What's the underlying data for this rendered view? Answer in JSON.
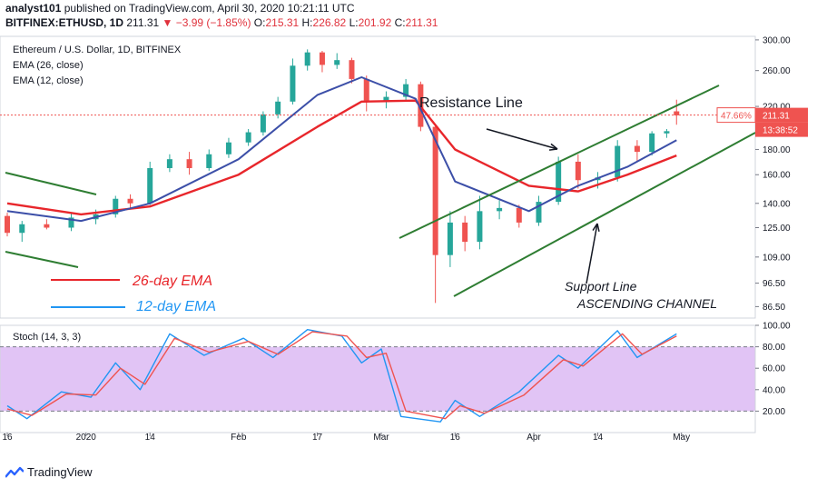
{
  "header": {
    "publisher": "analyst101",
    "published_text": "published on TradingView.com, April 30, 2020 10:21:11 UTC",
    "symbol": "BITFINEX:ETHUSD, 1D",
    "last": "211.31",
    "change": "▼ −3.99 (−1.85%)",
    "o_label": "O:",
    "o": "215.31",
    "h_label": "H:",
    "h": "226.82",
    "l_label": "L:",
    "l": "201.92",
    "c_label": "C:",
    "c": "211.31"
  },
  "footer": {
    "brand": "TradingView"
  },
  "colors": {
    "up": "#26a69a",
    "down": "#ef5350",
    "ema26": "#e8262b",
    "ema12": "#3c4fa8",
    "channel": "#2e7d32",
    "stoch_k": "#2196f3",
    "stoch_d": "#ef5350",
    "stoch_bg": "#e1c4f5",
    "price_tag": "#ef5350"
  },
  "chart_data": [
    {
      "type": "candlestick",
      "title": "Ethereum / U.S. Dollar, 1D, BITFINEX",
      "legend": [
        "EMA (26, close)",
        "EMA (12, close)"
      ],
      "y_scale": "log",
      "ylim": [
        82,
        305
      ],
      "y_ticks": [
        "300.00",
        "260.00",
        "220.00",
        "180.00",
        "160.00",
        "140.00",
        "125.00",
        "109.00",
        "96.50",
        "86.50"
      ],
      "x_ticks": [
        "16",
        "2020",
        "14",
        "Feb",
        "17",
        "Mar",
        "16",
        "Apr",
        "14",
        "May"
      ],
      "x_tick_dates": [
        "2019-12-16",
        "2020-01-01",
        "2020-01-14",
        "2020-02-01",
        "2020-02-17",
        "2020-03-01",
        "2020-03-16",
        "2020-04-01",
        "2020-04-14",
        "2020-05-01"
      ],
      "x_range": [
        "2019-12-16",
        "2020-05-16"
      ],
      "last_price_label": "211.31",
      "last_change_label": "47.66%",
      "countdown_label": "13:38:52",
      "annotations": {
        "resistance": "Resistance Line",
        "support": "Support Line",
        "channel": "ASCENDING CHANNEL",
        "ema26": "26-day EMA",
        "ema12": "12-day EMA"
      },
      "ohlc_daily_close_approx": [
        {
          "date": "2019-12-16",
          "o": 132,
          "h": 134,
          "l": 120,
          "c": 122
        },
        {
          "date": "2019-12-19",
          "o": 122,
          "h": 129,
          "l": 117,
          "c": 127
        },
        {
          "date": "2019-12-24",
          "o": 127,
          "h": 130,
          "l": 124,
          "c": 125
        },
        {
          "date": "2019-12-29",
          "o": 125,
          "h": 134,
          "l": 123,
          "c": 131
        },
        {
          "date": "2020-01-03",
          "o": 130,
          "h": 136,
          "l": 127,
          "c": 133
        },
        {
          "date": "2020-01-07",
          "o": 133,
          "h": 145,
          "l": 131,
          "c": 143
        },
        {
          "date": "2020-01-10",
          "o": 143,
          "h": 146,
          "l": 137,
          "c": 140
        },
        {
          "date": "2020-01-14",
          "o": 140,
          "h": 170,
          "l": 139,
          "c": 165
        },
        {
          "date": "2020-01-18",
          "o": 165,
          "h": 176,
          "l": 162,
          "c": 172
        },
        {
          "date": "2020-01-22",
          "o": 172,
          "h": 178,
          "l": 160,
          "c": 165
        },
        {
          "date": "2020-01-26",
          "o": 165,
          "h": 180,
          "l": 163,
          "c": 176
        },
        {
          "date": "2020-01-30",
          "o": 176,
          "h": 190,
          "l": 173,
          "c": 186
        },
        {
          "date": "2020-02-03",
          "o": 186,
          "h": 198,
          "l": 183,
          "c": 195
        },
        {
          "date": "2020-02-06",
          "o": 195,
          "h": 215,
          "l": 192,
          "c": 212
        },
        {
          "date": "2020-02-09",
          "o": 212,
          "h": 230,
          "l": 208,
          "c": 225
        },
        {
          "date": "2020-02-12",
          "o": 225,
          "h": 275,
          "l": 222,
          "c": 266
        },
        {
          "date": "2020-02-15",
          "o": 266,
          "h": 287,
          "l": 260,
          "c": 283
        },
        {
          "date": "2020-02-18",
          "o": 283,
          "h": 285,
          "l": 258,
          "c": 267
        },
        {
          "date": "2020-02-21",
          "o": 267,
          "h": 282,
          "l": 262,
          "c": 273
        },
        {
          "date": "2020-02-24",
          "o": 273,
          "h": 276,
          "l": 245,
          "c": 250
        },
        {
          "date": "2020-02-27",
          "o": 250,
          "h": 254,
          "l": 215,
          "c": 226
        },
        {
          "date": "2020-03-02",
          "o": 226,
          "h": 236,
          "l": 218,
          "c": 230
        },
        {
          "date": "2020-03-06",
          "o": 230,
          "h": 250,
          "l": 226,
          "c": 244
        },
        {
          "date": "2020-03-09",
          "o": 244,
          "h": 247,
          "l": 196,
          "c": 200
        },
        {
          "date": "2020-03-12",
          "o": 200,
          "h": 202,
          "l": 88,
          "c": 110
        },
        {
          "date": "2020-03-15",
          "o": 110,
          "h": 135,
          "l": 104,
          "c": 128
        },
        {
          "date": "2020-03-18",
          "o": 128,
          "h": 132,
          "l": 112,
          "c": 117
        },
        {
          "date": "2020-03-21",
          "o": 117,
          "h": 145,
          "l": 113,
          "c": 135
        },
        {
          "date": "2020-03-25",
          "o": 135,
          "h": 142,
          "l": 130,
          "c": 137
        },
        {
          "date": "2020-03-29",
          "o": 137,
          "h": 139,
          "l": 125,
          "c": 128
        },
        {
          "date": "2020-04-02",
          "o": 128,
          "h": 145,
          "l": 126,
          "c": 141
        },
        {
          "date": "2020-04-06",
          "o": 141,
          "h": 174,
          "l": 139,
          "c": 170
        },
        {
          "date": "2020-04-10",
          "o": 170,
          "h": 176,
          "l": 150,
          "c": 156
        },
        {
          "date": "2020-04-14",
          "o": 156,
          "h": 162,
          "l": 150,
          "c": 158
        },
        {
          "date": "2020-04-18",
          "o": 158,
          "h": 188,
          "l": 155,
          "c": 183
        },
        {
          "date": "2020-04-22",
          "o": 183,
          "h": 188,
          "l": 170,
          "c": 178
        },
        {
          "date": "2020-04-25",
          "o": 178,
          "h": 196,
          "l": 175,
          "c": 194
        },
        {
          "date": "2020-04-28",
          "o": 194,
          "h": 198,
          "l": 190,
          "c": 196
        },
        {
          "date": "2020-04-30",
          "o": 215,
          "h": 227,
          "l": 202,
          "c": 211
        }
      ],
      "ema26_approx": [
        {
          "date": "2019-12-16",
          "v": 140
        },
        {
          "date": "2019-12-31",
          "v": 133
        },
        {
          "date": "2020-01-14",
          "v": 138
        },
        {
          "date": "2020-02-01",
          "v": 160
        },
        {
          "date": "2020-02-17",
          "v": 200
        },
        {
          "date": "2020-02-26",
          "v": 225
        },
        {
          "date": "2020-03-08",
          "v": 226
        },
        {
          "date": "2020-03-16",
          "v": 180
        },
        {
          "date": "2020-03-31",
          "v": 152
        },
        {
          "date": "2020-04-10",
          "v": 148
        },
        {
          "date": "2020-04-20",
          "v": 160
        },
        {
          "date": "2020-04-30",
          "v": 175
        }
      ],
      "ema12_approx": [
        {
          "date": "2019-12-16",
          "v": 135
        },
        {
          "date": "2019-12-31",
          "v": 129
        },
        {
          "date": "2020-01-14",
          "v": 140
        },
        {
          "date": "2020-02-01",
          "v": 172
        },
        {
          "date": "2020-02-17",
          "v": 232
        },
        {
          "date": "2020-02-26",
          "v": 252
        },
        {
          "date": "2020-03-08",
          "v": 228
        },
        {
          "date": "2020-03-16",
          "v": 155
        },
        {
          "date": "2020-03-31",
          "v": 135
        },
        {
          "date": "2020-04-10",
          "v": 152
        },
        {
          "date": "2020-04-20",
          "v": 166
        },
        {
          "date": "2020-04-30",
          "v": 188
        }
      ]
    },
    {
      "type": "line",
      "title": "Stoch (14, 3, 3)",
      "ylim": [
        0,
        100
      ],
      "y_ticks": [
        "100.00",
        "80.00",
        "60.00",
        "40.00",
        "20.00"
      ],
      "bands": [
        20,
        80
      ],
      "series": [
        {
          "values": [
            {
              "date": "2019-12-16",
              "v": 25
            },
            {
              "date": "2019-12-20",
              "v": 13
            },
            {
              "date": "2019-12-27",
              "v": 38
            },
            {
              "date": "2020-01-02",
              "v": 33
            },
            {
              "date": "2020-01-07",
              "v": 65
            },
            {
              "date": "2020-01-12",
              "v": 40
            },
            {
              "date": "2020-01-18",
              "v": 92
            },
            {
              "date": "2020-01-25",
              "v": 72
            },
            {
              "date": "2020-02-02",
              "v": 88
            },
            {
              "date": "2020-02-08",
              "v": 70
            },
            {
              "date": "2020-02-15",
              "v": 96
            },
            {
              "date": "2020-02-22",
              "v": 90
            },
            {
              "date": "2020-02-26",
              "v": 65
            },
            {
              "date": "2020-03-01",
              "v": 78
            },
            {
              "date": "2020-03-05",
              "v": 15
            },
            {
              "date": "2020-03-13",
              "v": 10
            },
            {
              "date": "2020-03-16",
              "v": 30
            },
            {
              "date": "2020-03-21",
              "v": 15
            },
            {
              "date": "2020-03-29",
              "v": 38
            },
            {
              "date": "2020-04-06",
              "v": 72
            },
            {
              "date": "2020-04-10",
              "v": 60
            },
            {
              "date": "2020-04-18",
              "v": 95
            },
            {
              "date": "2020-04-22",
              "v": 70
            },
            {
              "date": "2020-04-30",
              "v": 92
            }
          ]
        },
        {
          "values": [
            {
              "date": "2019-12-16",
              "v": 22
            },
            {
              "date": "2019-12-21",
              "v": 16
            },
            {
              "date": "2019-12-28",
              "v": 36
            },
            {
              "date": "2020-01-03",
              "v": 35
            },
            {
              "date": "2020-01-08",
              "v": 60
            },
            {
              "date": "2020-01-13",
              "v": 45
            },
            {
              "date": "2020-01-19",
              "v": 88
            },
            {
              "date": "2020-01-26",
              "v": 75
            },
            {
              "date": "2020-02-03",
              "v": 85
            },
            {
              "date": "2020-02-09",
              "v": 73
            },
            {
              "date": "2020-02-16",
              "v": 94
            },
            {
              "date": "2020-02-23",
              "v": 90
            },
            {
              "date": "2020-02-27",
              "v": 70
            },
            {
              "date": "2020-03-02",
              "v": 74
            },
            {
              "date": "2020-03-06",
              "v": 20
            },
            {
              "date": "2020-03-14",
              "v": 13
            },
            {
              "date": "2020-03-17",
              "v": 25
            },
            {
              "date": "2020-03-22",
              "v": 18
            },
            {
              "date": "2020-03-30",
              "v": 35
            },
            {
              "date": "2020-04-07",
              "v": 68
            },
            {
              "date": "2020-04-11",
              "v": 62
            },
            {
              "date": "2020-04-19",
              "v": 92
            },
            {
              "date": "2020-04-23",
              "v": 73
            },
            {
              "date": "2020-04-30",
              "v": 90
            }
          ]
        }
      ]
    }
  ]
}
